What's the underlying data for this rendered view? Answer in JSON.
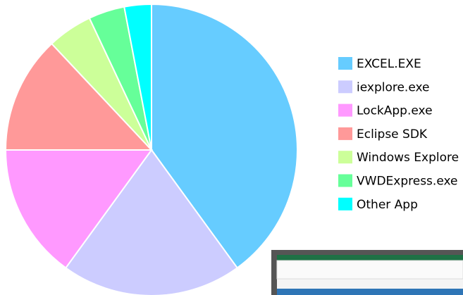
{
  "chart_data": {
    "type": "pie",
    "categories": [
      "EXCEL.EXE",
      "iexplore.exe",
      "LockApp.exe",
      "Eclipse SDK",
      "Windows Explore",
      "VWDExpress.exe",
      "Other App"
    ],
    "values": [
      40,
      20,
      15,
      13,
      5,
      4,
      3
    ],
    "colors": [
      "#66ccff",
      "#ccccff",
      "#ff99ff",
      "#ff9999",
      "#ccff99",
      "#66ff99",
      "#00ffff"
    ],
    "legend": "right"
  }
}
